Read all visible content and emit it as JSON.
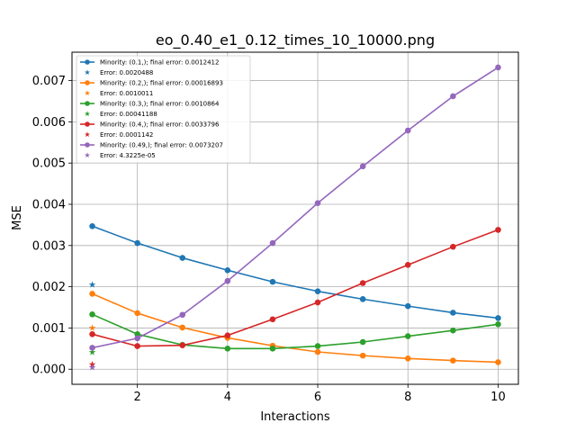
{
  "chart_data": {
    "type": "line",
    "title": "eo_0.40_e1_0.12_times_10_10000.png",
    "xlabel": "Interactions",
    "ylabel": "MSE",
    "xlim": [
      0.55,
      10.45
    ],
    "ylim": [
      -0.000366,
      0.007689
    ],
    "xticks": [
      2,
      4,
      6,
      8,
      10
    ],
    "yticks": [
      0.0,
      0.001,
      0.002,
      0.003,
      0.004,
      0.005,
      0.006,
      0.007
    ],
    "ytick_labels": [
      "0.000",
      "0.001",
      "0.002",
      "0.003",
      "0.004",
      "0.005",
      "0.006",
      "0.007"
    ],
    "grid": true,
    "legend_position": "upper-left",
    "x": [
      1,
      2,
      3,
      4,
      5,
      6,
      7,
      8,
      9,
      10
    ],
    "series": [
      {
        "name": "Minority: (0.1,); final error: 0.0012412",
        "color": "#1f77b4",
        "values": [
          0.00347,
          0.00306,
          0.0027,
          0.0024,
          0.00212,
          0.00189,
          0.0017,
          0.00153,
          0.00137,
          0.00124
        ],
        "error_name": "Error: 0.0020488",
        "error_value": 0.0020488
      },
      {
        "name": "Minority: (0.2,); final error: 0.00016893",
        "color": "#ff7f0e",
        "values": [
          0.00183,
          0.00136,
          0.00101,
          0.00076,
          0.00057,
          0.00042,
          0.00033,
          0.00026,
          0.00021,
          0.00017
        ],
        "error_name": "Error: 0.0010011",
        "error_value": 0.0010011
      },
      {
        "name": "Minority: (0.3,); final error: 0.0010864",
        "color": "#2ca02c",
        "values": [
          0.00133,
          0.00085,
          0.00059,
          0.0005,
          0.0005,
          0.00056,
          0.00066,
          0.0008,
          0.00094,
          0.00109
        ],
        "error_name": "Error: 0.00041188",
        "error_value": 0.00041188
      },
      {
        "name": "Minority: (0.4,); final error: 0.0033796",
        "color": "#d62728",
        "values": [
          0.00085,
          0.00056,
          0.00058,
          0.00082,
          0.00121,
          0.00162,
          0.00209,
          0.00253,
          0.00297,
          0.00338
        ],
        "error_name": "Error: 0.0001142",
        "error_value": 0.0001142
      },
      {
        "name": "Minority: (0.49,); final error: 0.0073207",
        "color": "#9467bd",
        "values": [
          0.00052,
          0.00075,
          0.00132,
          0.00214,
          0.00306,
          0.00403,
          0.00492,
          0.00579,
          0.00662,
          0.00732
        ],
        "error_name": "Error: 4.3225e-05",
        "error_value": 4.3225e-05
      }
    ]
  }
}
